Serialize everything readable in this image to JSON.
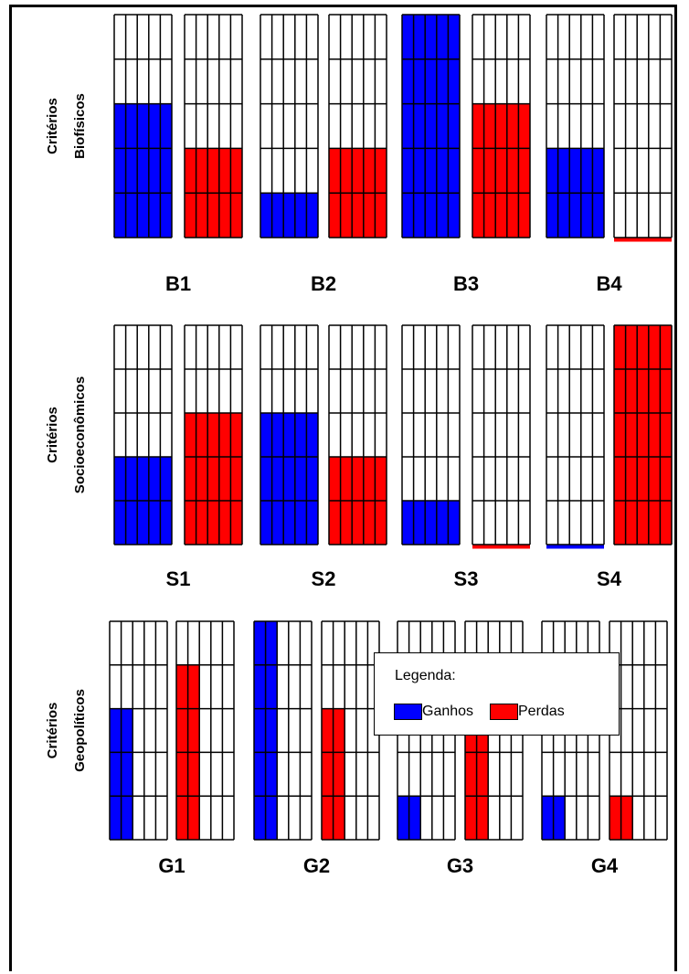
{
  "legend": {
    "title": "Legenda:",
    "items": [
      {
        "label": "Ganhos",
        "color": "#0000ff"
      },
      {
        "label": "Perdas",
        "color": "#ff0000"
      }
    ]
  },
  "chart_data": {
    "type": "bar",
    "title": "",
    "grid": true,
    "cell_grid": {
      "rows": 5,
      "cols": 5,
      "value_per_cell": 1
    },
    "value_range": [
      0,
      5
    ],
    "sections": [
      {
        "label": "Critérios\nBiofísicos",
        "groups": [
          {
            "name": "B1",
            "ganhos": 3,
            "perdas": 2
          },
          {
            "name": "B2",
            "ganhos": 1,
            "perdas": 2
          },
          {
            "name": "B3",
            "ganhos": 5,
            "perdas": 3
          },
          {
            "name": "B4",
            "ganhos": 2,
            "perdas": 0
          }
        ]
      },
      {
        "label": "Critérios\nSocioeconômicos",
        "groups": [
          {
            "name": "S1",
            "ganhos": 2,
            "perdas": 3
          },
          {
            "name": "S2",
            "ganhos": 3,
            "perdas": 2
          },
          {
            "name": "S3",
            "ganhos": 1,
            "perdas": 0
          },
          {
            "name": "S4",
            "ganhos": 0,
            "perdas": 5
          }
        ]
      },
      {
        "label": "Critérios\nGeopolíticos",
        "groups": [
          {
            "name": "G1",
            "ganhos": {
              "rows": 3,
              "cols": 2
            },
            "perdas": {
              "rows": 4,
              "cols": 2
            }
          },
          {
            "name": "G2",
            "ganhos": {
              "rows": 5,
              "cols": 2
            },
            "perdas": {
              "rows": 3,
              "cols": 2
            }
          },
          {
            "name": "G3",
            "ganhos": {
              "rows": 1,
              "cols": 2
            },
            "perdas": {
              "rows": 3,
              "cols": 2
            }
          },
          {
            "name": "G4",
            "ganhos": {
              "rows": 1,
              "cols": 2
            },
            "perdas": {
              "rows": 1,
              "cols": 2
            }
          }
        ]
      }
    ]
  }
}
